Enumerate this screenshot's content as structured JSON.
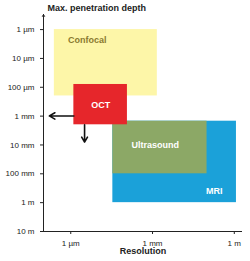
{
  "chart_data": {
    "type": "rect",
    "x_label": "Resolution",
    "y_label": "Max. penetration depth",
    "log": true,
    "xlim": [
      1e-07,
      2
    ],
    "ylim": [
      3e-07,
      10
    ],
    "xticks": [
      {
        "value": 1e-06,
        "label": "1 µm"
      },
      {
        "value": 0.001,
        "label": "1 mm"
      },
      {
        "value": 1,
        "label": "1 m"
      }
    ],
    "yticks": [
      {
        "value": 1e-06,
        "label": "1 µm"
      },
      {
        "value": 1e-05,
        "label": "10 µm"
      },
      {
        "value": 0.0001,
        "label": "100 µm"
      },
      {
        "value": 0.001,
        "label": "1 mm"
      },
      {
        "value": 0.01,
        "label": "10 mm"
      },
      {
        "value": 0.1,
        "label": "100 mm"
      },
      {
        "value": 1,
        "label": "1 m"
      },
      {
        "value": 10,
        "label": "10 m"
      }
    ],
    "series": [
      {
        "name": "MRI",
        "color": "#1ba1d9",
        "x": [
          3.5e-05,
          1.2
        ],
        "y": [
          0.0015,
          1
        ]
      },
      {
        "name": "Ultrasound",
        "color": "#8ca866",
        "x": [
          3.5e-05,
          0.1
        ],
        "y": [
          0.0015,
          0.1
        ]
      },
      {
        "name": "Confocal",
        "color": "#fdf6a8",
        "x": [
          2.5e-07,
          0.0015
        ],
        "y": [
          1e-06,
          0.0002
        ]
      },
      {
        "name": "OCT",
        "color": "#e6262b",
        "x": [
          1.3e-06,
          0.00012
        ],
        "y": [
          8e-05,
          0.002
        ]
      }
    ]
  }
}
